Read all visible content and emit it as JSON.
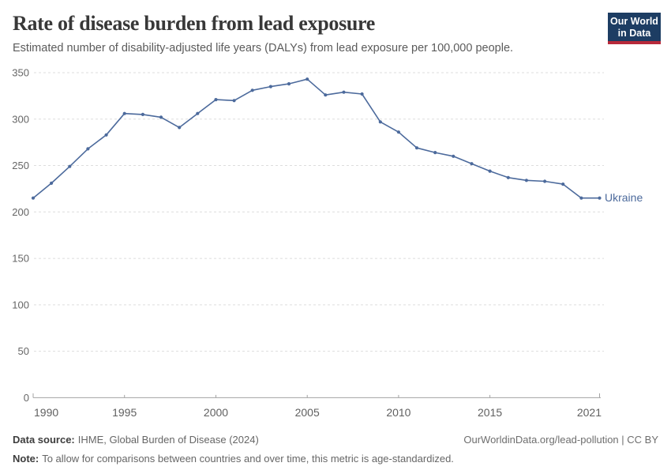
{
  "header": {
    "title": "Rate of disease burden from lead exposure",
    "subtitle": "Estimated number of disability-adjusted life years (DALYs) from lead exposure per 100,000 people.",
    "logo": {
      "line1": "Our World",
      "line2": "in Data",
      "bg_color": "#1d3d63",
      "bar_color": "#b7293a"
    }
  },
  "chart_data": {
    "type": "line",
    "title": "Rate of disease burden from lead exposure",
    "ylabel": "DALYs from lead exposure per 100,000 people",
    "x": [
      1990,
      1991,
      1992,
      1993,
      1994,
      1995,
      1996,
      1997,
      1998,
      1999,
      2000,
      2001,
      2002,
      2003,
      2004,
      2005,
      2006,
      2007,
      2008,
      2009,
      2010,
      2011,
      2012,
      2013,
      2014,
      2015,
      2016,
      2017,
      2018,
      2019,
      2020,
      2021
    ],
    "series": [
      {
        "name": "Ukraine",
        "color": "#4c6a9c",
        "values": [
          215,
          231,
          249,
          268,
          283,
          306,
          305,
          302,
          291,
          306,
          321,
          320,
          331,
          335,
          338,
          343,
          326,
          329,
          327,
          297,
          286,
          269,
          264,
          260,
          252,
          244,
          237,
          234,
          233,
          230,
          215,
          215
        ]
      }
    ],
    "end_label": "Ukraine",
    "ylim": [
      0,
      350
    ],
    "yticks": [
      0,
      50,
      100,
      150,
      200,
      250,
      300,
      350
    ],
    "xticks": [
      1990,
      1995,
      2000,
      2005,
      2010,
      2015,
      2021
    ],
    "grid": "horizontal-dashed",
    "legend_position": "end-of-line",
    "styles": {
      "grid_color": "#dddddd",
      "axis_color": "#a3a3a3",
      "y_label_color": "#666666",
      "x_label_color": "#606060"
    }
  },
  "footer": {
    "data_source_label": "Data source:",
    "data_source_text": "IHME, Global Burden of Disease (2024)",
    "link_text": "OurWorldinData.org/lead-pollution | CC BY",
    "note_label": "Note:",
    "note_text": "To allow for comparisons between countries and over time, this metric is age-standardized."
  }
}
